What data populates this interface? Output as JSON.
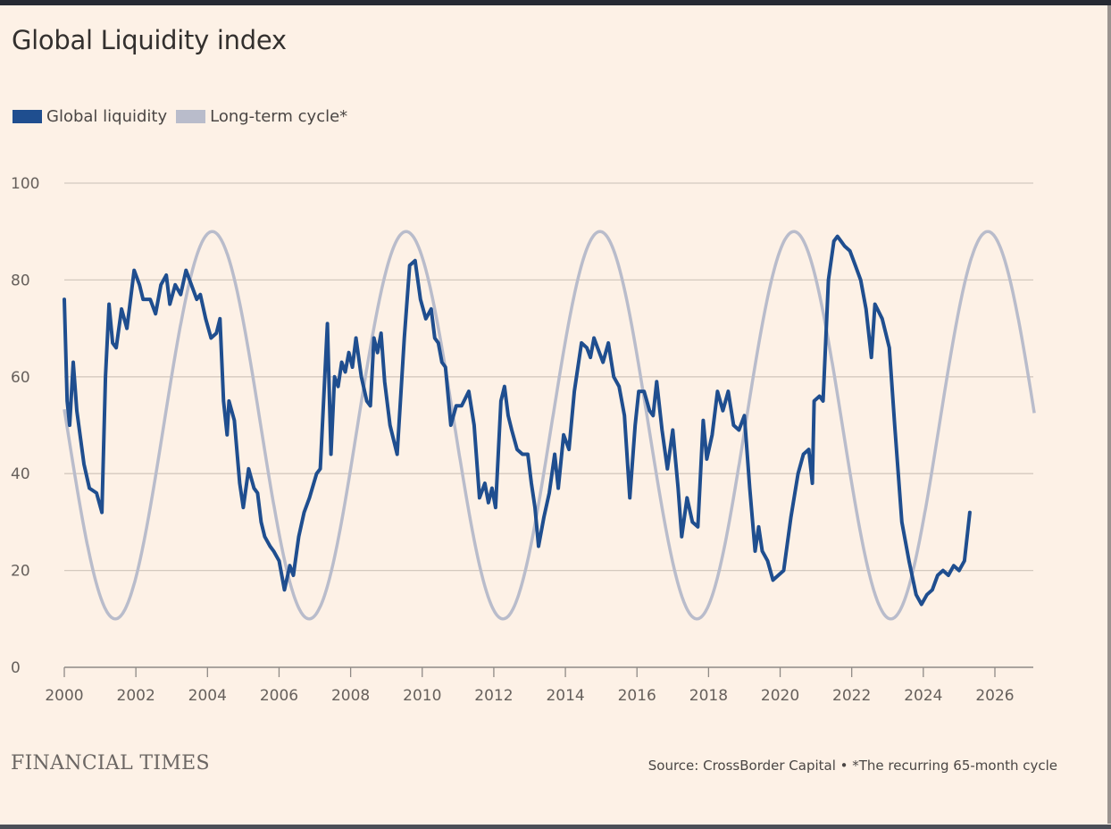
{
  "chart_data": {
    "type": "line",
    "title": "Global Liquidity index",
    "xlabel": "",
    "ylabel": "",
    "xlim": [
      2000,
      2027.1
    ],
    "ylim": [
      0,
      100
    ],
    "grid": true,
    "legend_position": "top-left",
    "x_ticks": [
      "2000",
      "2002",
      "2004",
      "2006",
      "2008",
      "2010",
      "2012",
      "2014",
      "2016",
      "2018",
      "2020",
      "2022",
      "2024",
      "2026"
    ],
    "y_ticks": [
      "0",
      "20",
      "40",
      "60",
      "80",
      "100"
    ],
    "colors": {
      "liquidity": "#1f4e8f",
      "cycle": "#b9bccb",
      "grid": "#d4c9bf",
      "axis": "#8f8a86"
    },
    "series": [
      {
        "name": "Global liquidity",
        "type": "line",
        "points": [
          [
            2000.0,
            76
          ],
          [
            2000.08,
            55
          ],
          [
            2000.15,
            50
          ],
          [
            2000.25,
            63
          ],
          [
            2000.35,
            53
          ],
          [
            2000.55,
            42
          ],
          [
            2000.7,
            37
          ],
          [
            2000.9,
            36
          ],
          [
            2001.05,
            32
          ],
          [
            2001.15,
            60
          ],
          [
            2001.25,
            75
          ],
          [
            2001.35,
            67
          ],
          [
            2001.45,
            66
          ],
          [
            2001.6,
            74
          ],
          [
            2001.75,
            70
          ],
          [
            2001.95,
            82
          ],
          [
            2002.1,
            79
          ],
          [
            2002.2,
            76
          ],
          [
            2002.4,
            76
          ],
          [
            2002.55,
            73
          ],
          [
            2002.7,
            79
          ],
          [
            2002.85,
            81
          ],
          [
            2002.95,
            75
          ],
          [
            2003.1,
            79
          ],
          [
            2003.25,
            77
          ],
          [
            2003.4,
            82
          ],
          [
            2003.55,
            79
          ],
          [
            2003.7,
            76
          ],
          [
            2003.8,
            77
          ],
          [
            2003.95,
            72
          ],
          [
            2004.1,
            68
          ],
          [
            2004.25,
            69
          ],
          [
            2004.35,
            72
          ],
          [
            2004.45,
            55
          ],
          [
            2004.55,
            48
          ],
          [
            2004.6,
            55
          ],
          [
            2004.75,
            51
          ],
          [
            2004.9,
            38
          ],
          [
            2005.0,
            33
          ],
          [
            2005.15,
            41
          ],
          [
            2005.3,
            37
          ],
          [
            2005.4,
            36
          ],
          [
            2005.5,
            30
          ],
          [
            2005.6,
            27
          ],
          [
            2005.75,
            25
          ],
          [
            2005.85,
            24
          ],
          [
            2006.0,
            22
          ],
          [
            2006.15,
            16
          ],
          [
            2006.3,
            21
          ],
          [
            2006.4,
            19
          ],
          [
            2006.55,
            27
          ],
          [
            2006.7,
            32
          ],
          [
            2006.85,
            35
          ],
          [
            2007.05,
            40
          ],
          [
            2007.15,
            41
          ],
          [
            2007.35,
            71
          ],
          [
            2007.45,
            44
          ],
          [
            2007.55,
            60
          ],
          [
            2007.65,
            58
          ],
          [
            2007.75,
            63
          ],
          [
            2007.85,
            61
          ],
          [
            2007.95,
            65
          ],
          [
            2008.05,
            62
          ],
          [
            2008.15,
            68
          ],
          [
            2008.3,
            60
          ],
          [
            2008.45,
            55
          ],
          [
            2008.55,
            54
          ],
          [
            2008.65,
            68
          ],
          [
            2008.75,
            65
          ],
          [
            2008.85,
            69
          ],
          [
            2008.95,
            59
          ],
          [
            2009.1,
            50
          ],
          [
            2009.3,
            44
          ],
          [
            2009.5,
            68
          ],
          [
            2009.65,
            83
          ],
          [
            2009.8,
            84
          ],
          [
            2009.95,
            76
          ],
          [
            2010.1,
            72
          ],
          [
            2010.25,
            74
          ],
          [
            2010.35,
            68
          ],
          [
            2010.45,
            67
          ],
          [
            2010.55,
            63
          ],
          [
            2010.65,
            62
          ],
          [
            2010.8,
            50
          ],
          [
            2010.95,
            54
          ],
          [
            2011.1,
            54
          ],
          [
            2011.3,
            57
          ],
          [
            2011.45,
            50
          ],
          [
            2011.6,
            35
          ],
          [
            2011.75,
            38
          ],
          [
            2011.85,
            34
          ],
          [
            2011.95,
            37
          ],
          [
            2012.05,
            33
          ],
          [
            2012.2,
            55
          ],
          [
            2012.3,
            58
          ],
          [
            2012.4,
            52
          ],
          [
            2012.5,
            49
          ],
          [
            2012.65,
            45
          ],
          [
            2012.8,
            44
          ],
          [
            2012.95,
            44
          ],
          [
            2013.05,
            38
          ],
          [
            2013.15,
            33
          ],
          [
            2013.25,
            25
          ],
          [
            2013.4,
            31
          ],
          [
            2013.55,
            36
          ],
          [
            2013.7,
            44
          ],
          [
            2013.8,
            37
          ],
          [
            2013.95,
            48
          ],
          [
            2014.1,
            45
          ],
          [
            2014.25,
            57
          ],
          [
            2014.45,
            67
          ],
          [
            2014.6,
            66
          ],
          [
            2014.7,
            64
          ],
          [
            2014.8,
            68
          ],
          [
            2014.9,
            66
          ],
          [
            2015.05,
            63
          ],
          [
            2015.2,
            67
          ],
          [
            2015.35,
            60
          ],
          [
            2015.5,
            58
          ],
          [
            2015.65,
            52
          ],
          [
            2015.8,
            35
          ],
          [
            2015.95,
            50
          ],
          [
            2016.05,
            57
          ],
          [
            2016.2,
            57
          ],
          [
            2016.35,
            53
          ],
          [
            2016.45,
            52
          ],
          [
            2016.55,
            59
          ],
          [
            2016.7,
            49
          ],
          [
            2016.85,
            41
          ],
          [
            2017.0,
            49
          ],
          [
            2017.15,
            37
          ],
          [
            2017.25,
            27
          ],
          [
            2017.4,
            35
          ],
          [
            2017.55,
            30
          ],
          [
            2017.7,
            29
          ],
          [
            2017.85,
            51
          ],
          [
            2017.95,
            43
          ],
          [
            2018.1,
            48
          ],
          [
            2018.25,
            57
          ],
          [
            2018.4,
            53
          ],
          [
            2018.55,
            57
          ],
          [
            2018.7,
            50
          ],
          [
            2018.85,
            49
          ],
          [
            2019.0,
            52
          ],
          [
            2019.15,
            37
          ],
          [
            2019.3,
            24
          ],
          [
            2019.4,
            29
          ],
          [
            2019.5,
            24
          ],
          [
            2019.65,
            22
          ],
          [
            2019.8,
            18
          ],
          [
            2019.95,
            19
          ],
          [
            2020.1,
            20
          ],
          [
            2020.3,
            31
          ],
          [
            2020.5,
            40
          ],
          [
            2020.65,
            44
          ],
          [
            2020.8,
            45
          ],
          [
            2020.9,
            38
          ],
          [
            2020.95,
            55
          ],
          [
            2021.1,
            56
          ],
          [
            2021.2,
            55
          ],
          [
            2021.35,
            80
          ],
          [
            2021.5,
            88
          ],
          [
            2021.6,
            89
          ],
          [
            2021.7,
            88
          ],
          [
            2021.8,
            87
          ],
          [
            2021.95,
            86
          ],
          [
            2022.1,
            83
          ],
          [
            2022.25,
            80
          ],
          [
            2022.4,
            74
          ],
          [
            2022.55,
            64
          ],
          [
            2022.65,
            75
          ],
          [
            2022.85,
            72
          ],
          [
            2022.95,
            69
          ],
          [
            2023.05,
            66
          ],
          [
            2023.2,
            50
          ],
          [
            2023.4,
            30
          ],
          [
            2023.6,
            22
          ],
          [
            2023.8,
            15
          ],
          [
            2023.95,
            13
          ],
          [
            2024.1,
            15
          ],
          [
            2024.25,
            16
          ],
          [
            2024.4,
            19
          ],
          [
            2024.55,
            20
          ],
          [
            2024.7,
            19
          ],
          [
            2024.85,
            21
          ],
          [
            2025.0,
            20
          ],
          [
            2025.15,
            22
          ],
          [
            2025.3,
            32
          ]
        ]
      },
      {
        "name": "Long-term cycle*",
        "type": "line",
        "period_months": 65,
        "peak_year": 2025.8,
        "mid": 50,
        "amplitude": 40,
        "x_range": [
          2000,
          2027.1
        ]
      }
    ]
  },
  "header": {
    "title": "Global Liquidity index",
    "legend": [
      {
        "label": "Global liquidity",
        "color": "#1f4e8f"
      },
      {
        "label": "Long-term cycle*",
        "color": "#b9bccb"
      }
    ]
  },
  "footer": {
    "brand": "FINANCIAL TIMES",
    "source": "Source: CrossBorder Capital • *The recurring 65-month cycle"
  }
}
